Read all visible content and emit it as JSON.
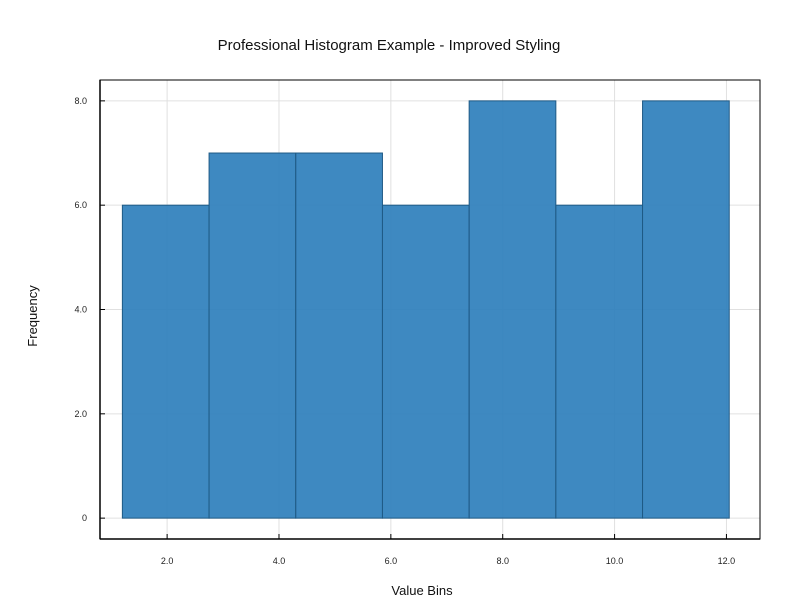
{
  "chart_data": {
    "type": "bar",
    "title": "Professional Histogram Example - Improved Styling",
    "xlabel": "Value Bins",
    "ylabel": "Frequency",
    "bins": [
      {
        "start": 1.2,
        "end": 2.75,
        "count": 6
      },
      {
        "start": 2.75,
        "end": 4.3,
        "count": 7
      },
      {
        "start": 4.3,
        "end": 5.85,
        "count": 7
      },
      {
        "start": 5.85,
        "end": 7.4,
        "count": 6
      },
      {
        "start": 7.4,
        "end": 8.95,
        "count": 8
      },
      {
        "start": 8.95,
        "end": 10.5,
        "count": 6
      },
      {
        "start": 10.5,
        "end": 12.05,
        "count": 8
      }
    ],
    "xlim": [
      0.8,
      12.6
    ],
    "ylim": [
      -0.4,
      8.4
    ],
    "x_ticks": [
      {
        "value": 2.0,
        "label": "2.0"
      },
      {
        "value": 4.0,
        "label": "4.0"
      },
      {
        "value": 6.0,
        "label": "6.0"
      },
      {
        "value": 8.0,
        "label": "8.0"
      },
      {
        "value": 10.0,
        "label": "10.0"
      },
      {
        "value": 12.0,
        "label": "12.0"
      }
    ],
    "y_ticks": [
      {
        "value": 0,
        "label": "0"
      },
      {
        "value": 2,
        "label": "2.0"
      },
      {
        "value": 4,
        "label": "4.0"
      },
      {
        "value": 6,
        "label": "6.0"
      },
      {
        "value": 8,
        "label": "8.0"
      }
    ],
    "grid": true,
    "bar_color": "#2e7fbc",
    "bar_edge_color": "#1f5a85",
    "grid_color": "#e0e0e0"
  }
}
